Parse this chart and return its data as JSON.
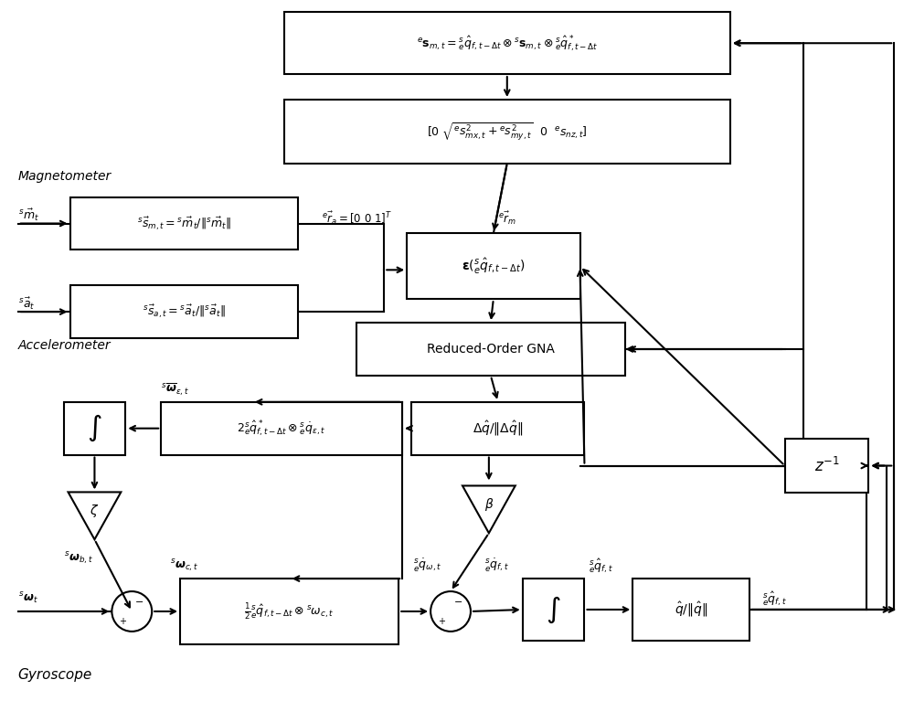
{
  "bg_color": "#ffffff",
  "fig_width": 10.0,
  "fig_height": 7.67,
  "lw": 1.5,
  "box1_text": "${}^e\\mathbf{s}_{m,t} = {}^s_e\\hat{q}_{f,t-\\Delta t} \\otimes {}^s\\mathbf{s}_{m,t} \\otimes {}^s_e\\hat{q}^*_{f,t-\\Delta t}$",
  "box2_text": "$[0\\ \\sqrt{{}^e s^2_{mx,t} + {}^e s^2_{my,t}}\\ \\ 0\\ \\ {}^e s_{nz,t}]$",
  "box3_text": "$\\boldsymbol{\\varepsilon}({}^s_e\\hat{q}_{f,t-\\Delta t})$",
  "box4_text": "Reduced-Order GNA",
  "box5_text": "$\\Delta\\hat{q}/\\|\\Delta\\hat{q}\\|$",
  "box6_text": "$2{}^s_e\\hat{q}^*_{f,t-\\Delta t} \\otimes {}^s_e\\dot{q}_{\\varepsilon,t}$",
  "box7_text": "$\\frac{1}{2}{}^s_e\\hat{q}_{f,t-\\Delta t} \\otimes {}^s\\omega_{c,t}$",
  "boxn_text": "$\\hat{q}/\\|\\hat{q}\\|$",
  "boxz_text": "$z^{-1}$",
  "lm_text": "${}^s\\vec{s}_{m,t} = {}^s\\vec{m}_t/\\|{}^s\\vec{m}_t\\|$",
  "la_text": "${}^s\\vec{s}_{a,t} = {}^s\\vec{a}_t/\\|{}^s\\vec{a}_t\\|$"
}
